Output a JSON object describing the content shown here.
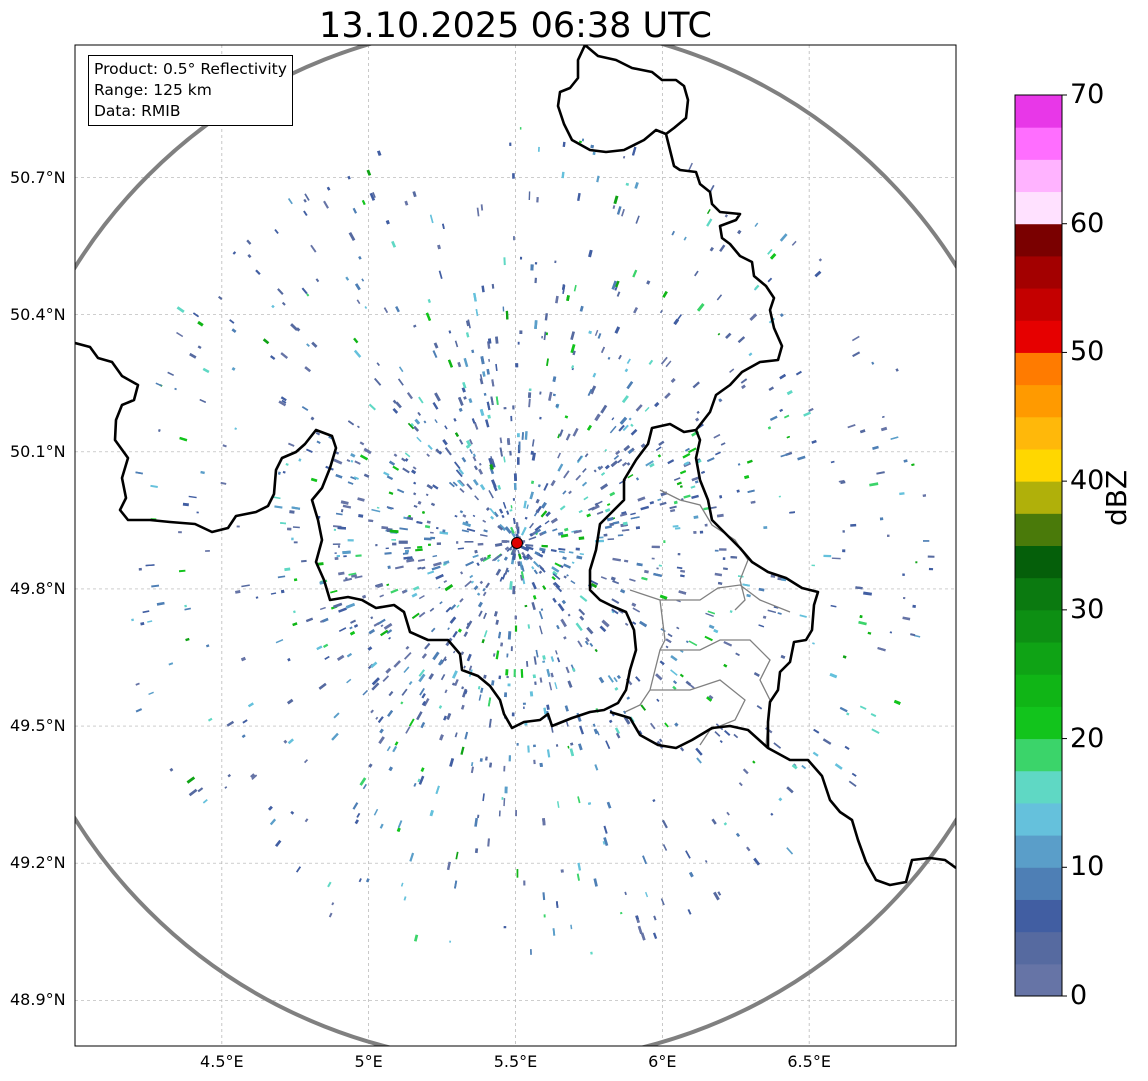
{
  "title": "13.10.2025 06:38 UTC",
  "info_box": {
    "product": "Product: 0.5° Reflectivity",
    "range": "Range: 125 km",
    "data": "Data: RMIB"
  },
  "map": {
    "extent": {
      "lon_min": 4.0,
      "lon_max": 7.0,
      "lat_min": 48.8,
      "lat_max": 50.99
    },
    "radar_site": {
      "lon": 5.505,
      "lat": 49.914,
      "color": "#e00000"
    },
    "range_ring_color": "#808080",
    "border_color": "#000000",
    "district_color": "#808080",
    "gridlines": true,
    "lat_ticks": [
      "50.7°N",
      "50.4°N",
      "50.1°N",
      "49.8°N",
      "49.5°N",
      "49.2°N",
      "48.9°N"
    ],
    "lon_ticks": [
      "4.5°E",
      "5°E",
      "5.5°E",
      "6°E",
      "6.5°E"
    ]
  },
  "colorbar": {
    "label": "dBZ",
    "min": 0,
    "max": 70,
    "ticks": [
      "0",
      "10",
      "20",
      "30",
      "40",
      "50",
      "60",
      "70"
    ],
    "colors": [
      "#6674a6",
      "#566aa0",
      "#415ea2",
      "#4e7fb5",
      "#5a9ec9",
      "#65c1dc",
      "#5fd8c4",
      "#3bd46a",
      "#12c41c",
      "#10b516",
      "#0fa315",
      "#0d8f13",
      "#0b7a10",
      "#055f0a",
      "#4a7a0a",
      "#b0b00a",
      "#ffd700",
      "#ffb80a",
      "#ff9a00",
      "#ff7b00",
      "#e60000",
      "#c40000",
      "#a30000",
      "#7a0000",
      "#ffe1ff",
      "#ffb3ff",
      "#ff6eff",
      "#e837e8"
    ]
  }
}
